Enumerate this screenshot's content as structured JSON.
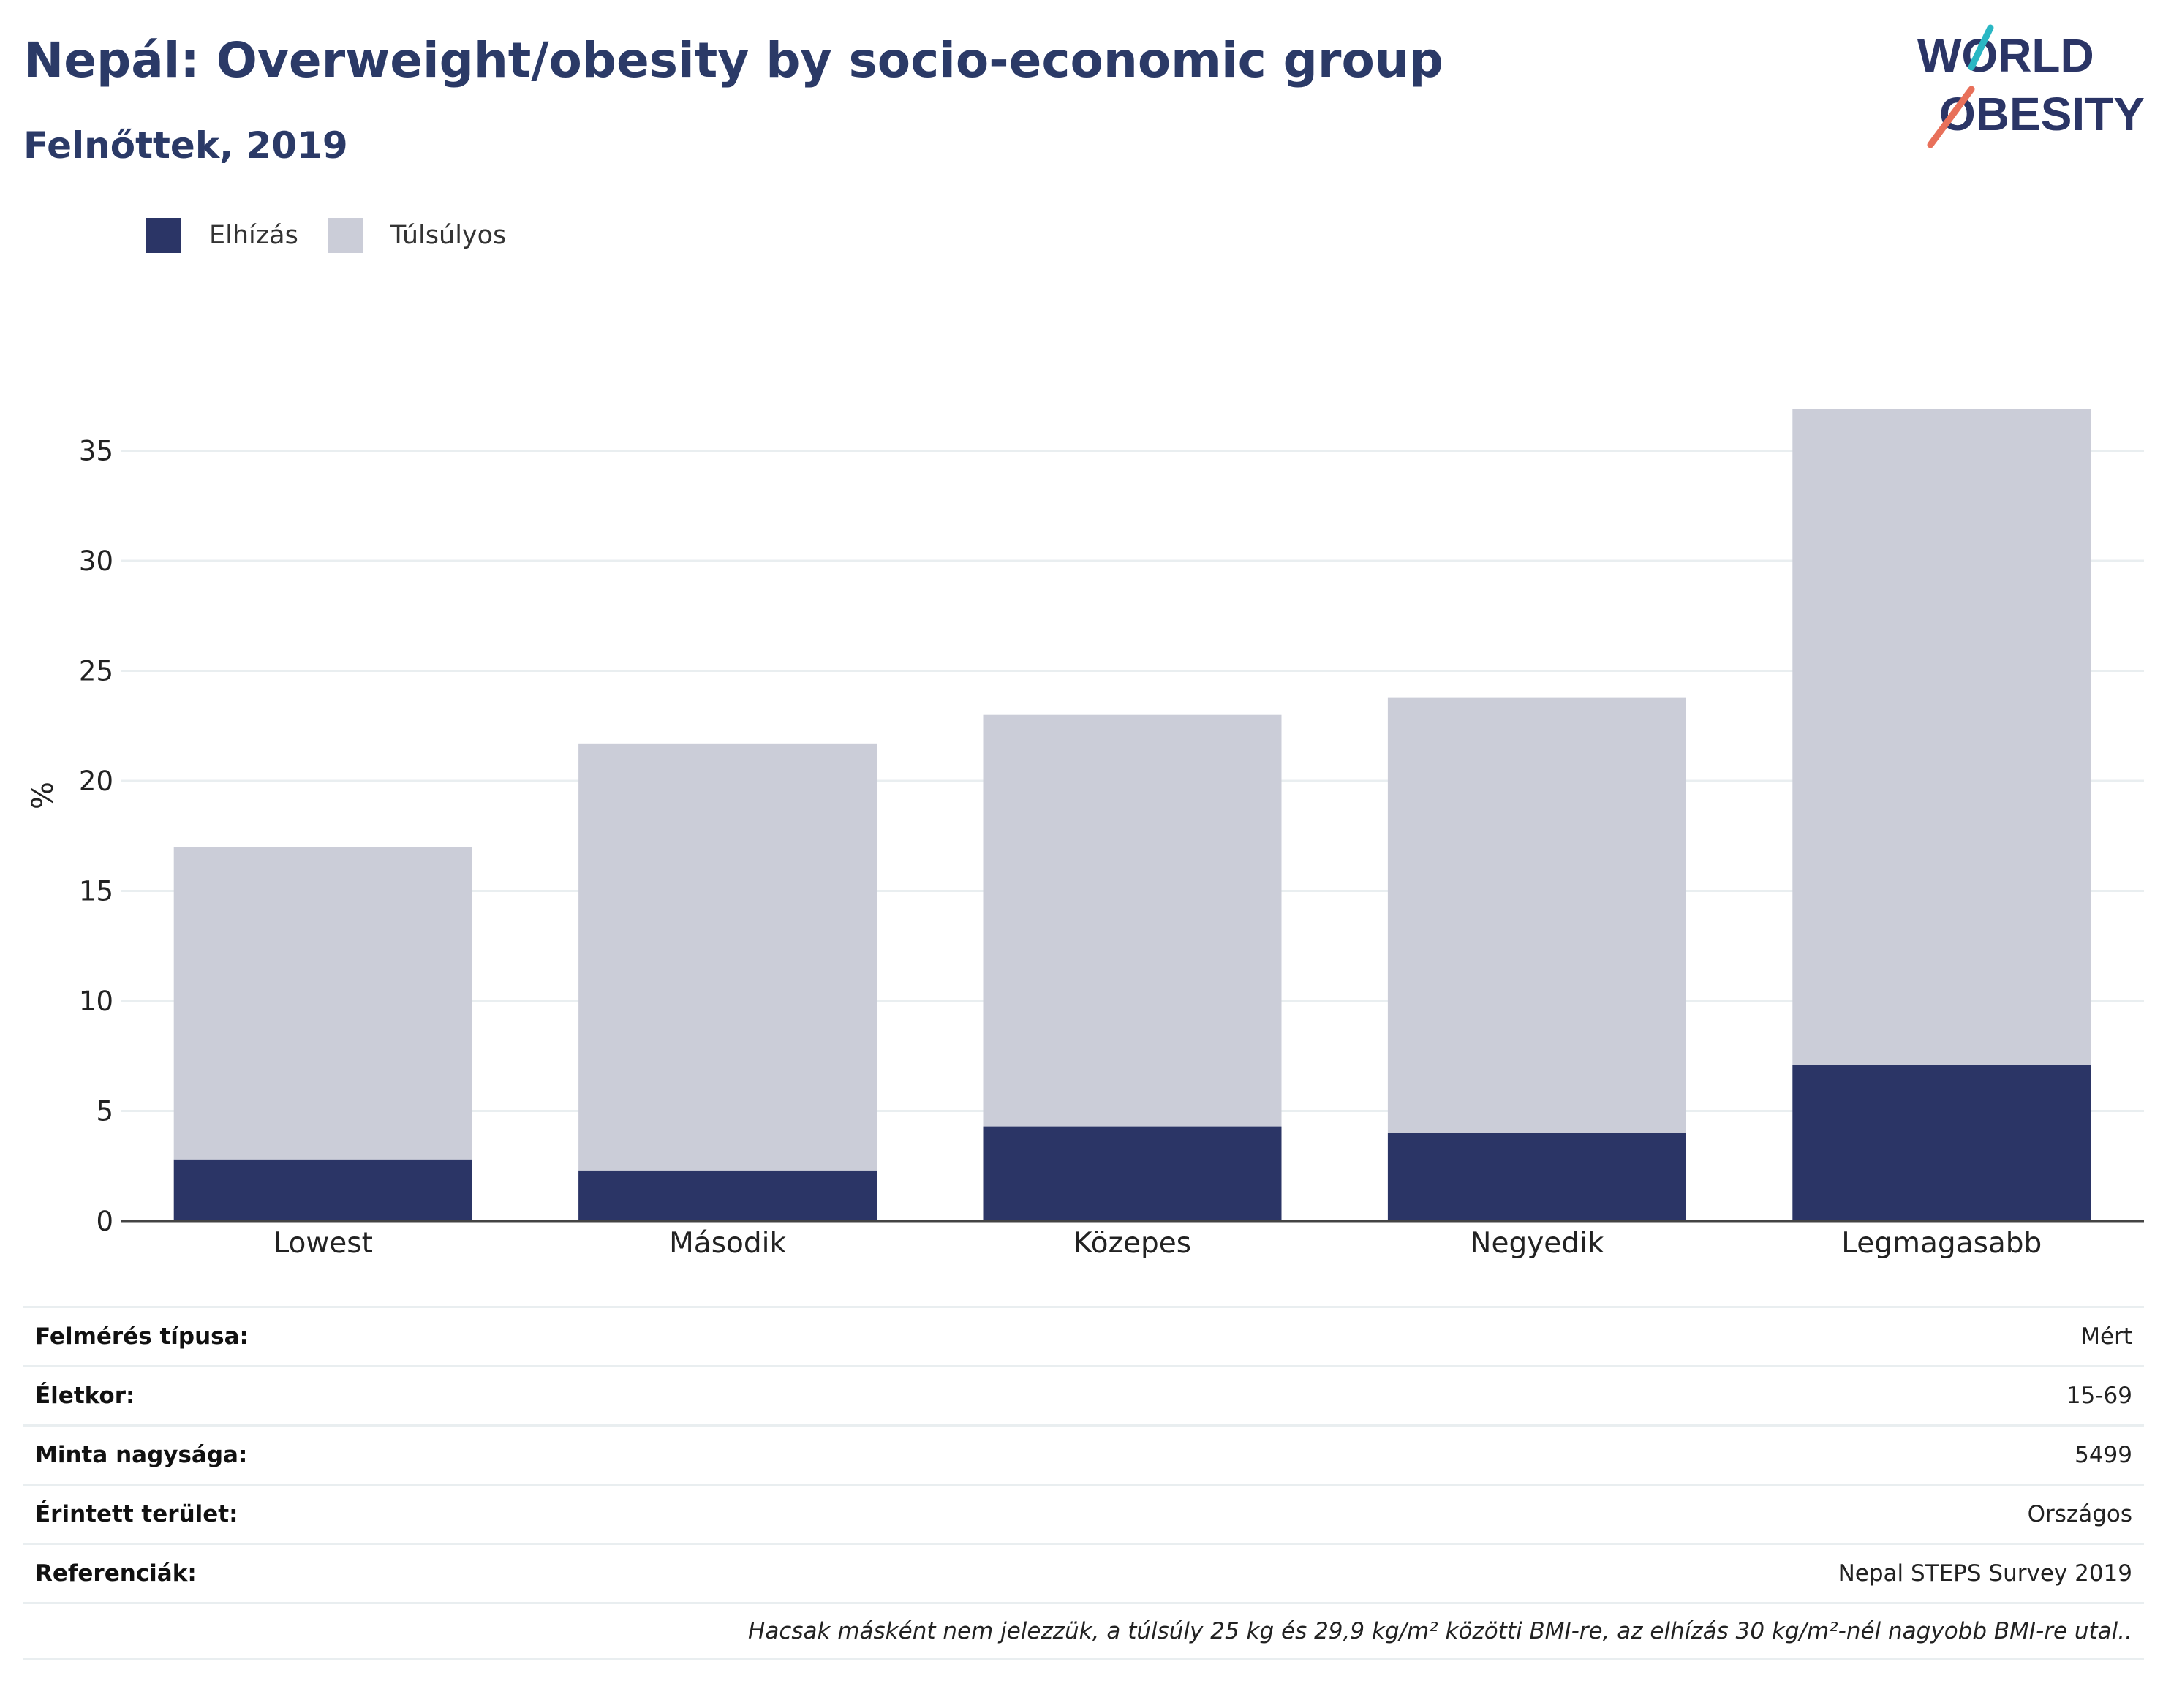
{
  "header": {
    "title": "Nepál: Overweight/obesity by socio-economic group",
    "subtitle": "Felnőttek, 2019"
  },
  "logo": {
    "line1": "WORLD",
    "line2": "OBESITY",
    "accent_colors": [
      "#2ab7c4",
      "#e8705a"
    ]
  },
  "legend": [
    {
      "label": "Elhízás",
      "color": "#2b3566"
    },
    {
      "label": "Túlsúlyos",
      "color": "#cbcdd8"
    }
  ],
  "chart_data": {
    "type": "bar",
    "stacked": true,
    "categories": [
      "Lowest",
      "Második",
      "Közepes",
      "Negyedik",
      "Legmagasabb"
    ],
    "series": [
      {
        "name": "Elhízás",
        "color": "#2b3566",
        "values": [
          2.8,
          2.3,
          4.3,
          4.0,
          7.1
        ]
      },
      {
        "name": "Túlsúlyos",
        "color": "#cbcdd8",
        "values": [
          14.2,
          19.4,
          18.7,
          19.8,
          29.8
        ]
      }
    ],
    "ylabel": "%",
    "ylim": [
      0,
      37
    ],
    "yticks": [
      0,
      5,
      10,
      15,
      20,
      25,
      30,
      35
    ],
    "grid": true
  },
  "info_table": [
    {
      "label": "Felmérés típusa:",
      "value": "Mért"
    },
    {
      "label": "Életkor:",
      "value": "15-69"
    },
    {
      "label": "Minta nagysága:",
      "value": "5499"
    },
    {
      "label": "Érintett terület:",
      "value": "Országos"
    },
    {
      "label": "Referenciák:",
      "value": "Nepal STEPS Survey 2019"
    }
  ],
  "footnote": "Hacsak másként nem jelezzük, a túlsúly 25 kg és 29,9 kg/m² közötti BMI-re, az elhízás 30 kg/m²-nél nagyobb BMI-re utal.."
}
